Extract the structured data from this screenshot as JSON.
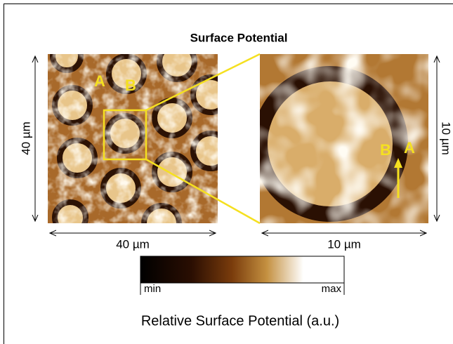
{
  "title": "Surface Potential",
  "left_panel": {
    "width_label": "40 µm",
    "height_label": "40 µm",
    "markers": [
      "A",
      "B"
    ]
  },
  "right_panel": {
    "width_label": "10 µm",
    "height_label": "10 µm",
    "markers": [
      "B",
      "A"
    ]
  },
  "colorbar": {
    "min_label": "min",
    "max_label": "max",
    "caption": "Relative Surface Potential (a.u.)"
  }
}
